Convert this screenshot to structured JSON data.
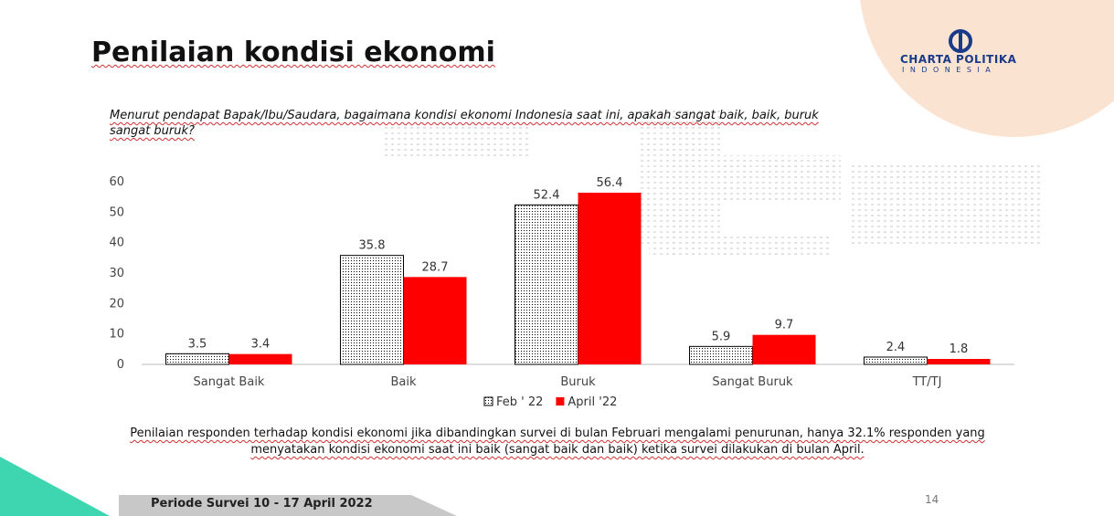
{
  "slide": {
    "title": "Penilaian kondisi ekonomi",
    "question": "Menurut pendapat Bapak/Ibu/Saudara, bagaimana kondisi ekonomi Indonesia saat ini,  apakah sangat baik, baik, buruk sangat buruk?",
    "note": "Penilaian responden terhadap kondisi ekonomi jika dibandingkan survei di bulan Februari mengalami penurunan, hanya 32.1% responden yang menyatakan kondisi ekonomi saat ini baik (sangat baik dan baik) ketika survei dilakukan di bulan April.",
    "footer": "Periode Survei 10 - 17 April 2022",
    "page": "14",
    "logo_name": "CHARTA POLITIKA",
    "logo_sub": "INDONESIA"
  },
  "chart_data": {
    "type": "bar",
    "categories": [
      "Sangat Baik",
      "Baik",
      "Buruk",
      "Sangat Buruk",
      "TT/TJ"
    ],
    "series": [
      {
        "name": "Feb ' 22",
        "color": "#000000",
        "pattern": "dotted",
        "values": [
          3.5,
          35.8,
          52.4,
          5.9,
          2.4
        ]
      },
      {
        "name": "April '22",
        "color": "#ff0000",
        "values": [
          3.4,
          28.7,
          56.4,
          9.7,
          1.8
        ]
      }
    ],
    "ylim": [
      0,
      60
    ],
    "yticks": [
      0,
      10,
      20,
      30,
      40,
      50,
      60
    ],
    "grid": false,
    "legend": "bottom"
  }
}
